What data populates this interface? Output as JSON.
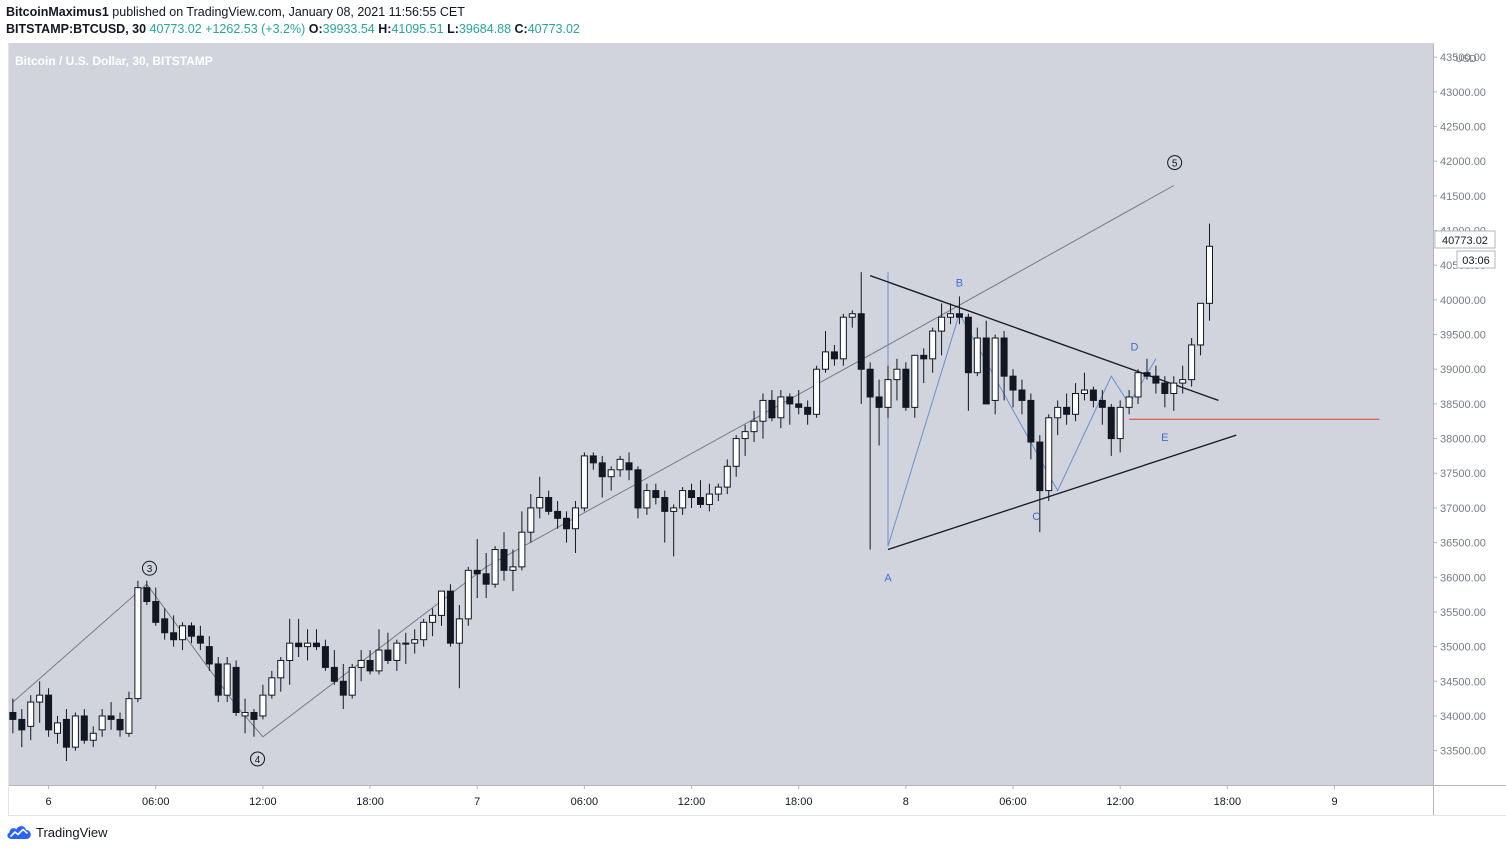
{
  "header": {
    "publisher": "BitcoinMaximus1",
    "published_text": "published on TradingView.com, January 08, 2021 11:56:55 CET"
  },
  "ohlc": {
    "symbol": "BITSTAMP:BTCUSD, 30",
    "last": "40773.02",
    "change": "+1262.53 (+3.2%)",
    "o_label": "O:",
    "o": "39933.54",
    "h_label": "H:",
    "h": "41095.51",
    "l_label": "L:",
    "l": "39684.88",
    "c_label": "C:",
    "c": "40773.02"
  },
  "chart_data": {
    "type": "candlestick",
    "title": "Bitcoin / U.S. Dollar, 30, BITSTAMP",
    "currency": "USD",
    "last_price_label": "40773.02",
    "countdown_label": "03:06",
    "y_ticks": [
      43500,
      43000,
      42500,
      42000,
      41500,
      41000,
      40500,
      40000,
      39500,
      39000,
      38500,
      38000,
      37500,
      37000,
      36500,
      36000,
      35500,
      35000,
      34500,
      34000,
      33500
    ],
    "ylim": [
      33000,
      43700
    ],
    "x_ticks": [
      "6",
      "06:00",
      "12:00",
      "18:00",
      "7",
      "06:00",
      "12:00",
      "18:00",
      "8",
      "06:00",
      "12:00",
      "18:00",
      "9"
    ],
    "x_tick_bars": [
      4,
      16,
      28,
      40,
      52,
      64,
      76,
      88,
      100,
      112,
      124,
      136,
      148
    ],
    "candles": [
      [
        34050,
        34250,
        33750,
        33950
      ],
      [
        33950,
        34100,
        33550,
        33800
      ],
      [
        33850,
        34300,
        33650,
        34200
      ],
      [
        34200,
        34500,
        33900,
        34300
      ],
      [
        34300,
        34400,
        33700,
        33800
      ],
      [
        33750,
        34000,
        33600,
        33900
      ],
      [
        33950,
        34100,
        33350,
        33550
      ],
      [
        33550,
        34050,
        33500,
        34000
      ],
      [
        34000,
        34100,
        33600,
        33650
      ],
      [
        33650,
        33850,
        33550,
        33750
      ],
      [
        33800,
        34100,
        33700,
        34000
      ],
      [
        34000,
        34200,
        33800,
        33950
      ],
      [
        33950,
        34050,
        33700,
        33800
      ],
      [
        33750,
        34350,
        33700,
        34250
      ],
      [
        34250,
        35950,
        34200,
        35850
      ],
      [
        35850,
        35950,
        35600,
        35650
      ],
      [
        35650,
        35850,
        35300,
        35350
      ],
      [
        35400,
        35550,
        35100,
        35200
      ],
      [
        35200,
        35450,
        35000,
        35100
      ],
      [
        35100,
        35350,
        34950,
        35300
      ],
      [
        35300,
        35350,
        35050,
        35150
      ],
      [
        35150,
        35300,
        34950,
        35050
      ],
      [
        35000,
        35150,
        34650,
        34750
      ],
      [
        34750,
        34850,
        34200,
        34300
      ],
      [
        34300,
        34850,
        34200,
        34750
      ],
      [
        34700,
        34800,
        34000,
        34050
      ],
      [
        34000,
        34250,
        33750,
        34050
      ],
      [
        34050,
        34100,
        33700,
        33950
      ],
      [
        34000,
        34450,
        33950,
        34300
      ],
      [
        34300,
        34650,
        34250,
        34550
      ],
      [
        34550,
        34850,
        34350,
        34800
      ],
      [
        34800,
        35400,
        34450,
        35050
      ],
      [
        35050,
        35400,
        34850,
        35000
      ],
      [
        35000,
        35250,
        34800,
        35050
      ],
      [
        35050,
        35250,
        34950,
        35000
      ],
      [
        35000,
        35100,
        34650,
        34700
      ],
      [
        34700,
        34950,
        34450,
        34500
      ],
      [
        34500,
        34750,
        34100,
        34300
      ],
      [
        34300,
        34750,
        34250,
        34700
      ],
      [
        34700,
        34950,
        34500,
        34800
      ],
      [
        34800,
        34950,
        34600,
        34650
      ],
      [
        34650,
        35250,
        34600,
        34950
      ],
      [
        34950,
        35200,
        34750,
        34800
      ],
      [
        34800,
        35100,
        34650,
        35050
      ],
      [
        35050,
        35200,
        34750,
        35050
      ],
      [
        35050,
        35250,
        34900,
        35100
      ],
      [
        35100,
        35400,
        35000,
        35350
      ],
      [
        35350,
        35550,
        35150,
        35450
      ],
      [
        35450,
        35800,
        35300,
        35800
      ],
      [
        35800,
        35900,
        35000,
        35050
      ],
      [
        35050,
        35600,
        34400,
        35400
      ],
      [
        35400,
        36150,
        35300,
        36100
      ],
      [
        36100,
        36550,
        35700,
        36050
      ],
      [
        36050,
        36350,
        35700,
        35900
      ],
      [
        35900,
        36450,
        35850,
        36400
      ],
      [
        36400,
        36650,
        35950,
        36100
      ],
      [
        36100,
        36400,
        35800,
        36150
      ],
      [
        36150,
        36950,
        36100,
        36650
      ],
      [
        36650,
        37200,
        36500,
        37000
      ],
      [
        37000,
        37450,
        36850,
        37150
      ],
      [
        37150,
        37250,
        36900,
        36950
      ],
      [
        36950,
        37100,
        36700,
        36850
      ],
      [
        36850,
        36950,
        36500,
        36700
      ],
      [
        36700,
        37100,
        36350,
        37000
      ],
      [
        37000,
        37800,
        36950,
        37750
      ],
      [
        37750,
        37800,
        37550,
        37650
      ],
      [
        37650,
        37750,
        37150,
        37450
      ],
      [
        37450,
        37600,
        37250,
        37550
      ],
      [
        37550,
        37750,
        37450,
        37700
      ],
      [
        37650,
        37800,
        37400,
        37550
      ],
      [
        37550,
        37600,
        36850,
        37000
      ],
      [
        37000,
        37350,
        36900,
        37250
      ],
      [
        37250,
        37350,
        37050,
        37150
      ],
      [
        37150,
        37250,
        36500,
        36950
      ],
      [
        36950,
        37050,
        36300,
        37000
      ],
      [
        37000,
        37300,
        36900,
        37250
      ],
      [
        37250,
        37350,
        37000,
        37150
      ],
      [
        37150,
        37400,
        37000,
        37050
      ],
      [
        37050,
        37350,
        36950,
        37200
      ],
      [
        37200,
        37350,
        37100,
        37300
      ],
      [
        37300,
        37700,
        37200,
        37600
      ],
      [
        37600,
        38050,
        37450,
        38000
      ],
      [
        38000,
        38200,
        37750,
        38100
      ],
      [
        38100,
        38400,
        37950,
        38250
      ],
      [
        38250,
        38650,
        38000,
        38550
      ],
      [
        38550,
        38700,
        38250,
        38300
      ],
      [
        38300,
        38700,
        38150,
        38600
      ],
      [
        38600,
        38650,
        38200,
        38500
      ],
      [
        38500,
        38700,
        38350,
        38450
      ],
      [
        38450,
        38550,
        38200,
        38350
      ],
      [
        38350,
        39050,
        38300,
        39000
      ],
      [
        39000,
        39550,
        38950,
        39250
      ],
      [
        39250,
        39350,
        39050,
        39150
      ],
      [
        39150,
        39800,
        39050,
        39750
      ],
      [
        39750,
        39850,
        39600,
        39800
      ],
      [
        39800,
        40400,
        38500,
        39000
      ],
      [
        39000,
        39100,
        36400,
        38600
      ],
      [
        38600,
        38850,
        37900,
        38450
      ],
      [
        38450,
        39050,
        38300,
        38850
      ],
      [
        38850,
        39150,
        38550,
        39000
      ],
      [
        39000,
        39100,
        38400,
        38450
      ],
      [
        38450,
        39200,
        38300,
        39200
      ],
      [
        39200,
        39300,
        38800,
        39150
      ],
      [
        39150,
        39600,
        38950,
        39550
      ],
      [
        39550,
        39950,
        39200,
        39750
      ],
      [
        39750,
        39950,
        39650,
        39800
      ],
      [
        39800,
        40050,
        39650,
        39750
      ],
      [
        39750,
        39800,
        38400,
        38950
      ],
      [
        38950,
        39600,
        38900,
        39450
      ],
      [
        39450,
        39700,
        38500,
        38500
      ],
      [
        38550,
        39500,
        38350,
        39450
      ],
      [
        39450,
        39550,
        38550,
        38900
      ],
      [
        38900,
        39000,
        38450,
        38700
      ],
      [
        38700,
        38850,
        38350,
        38550
      ],
      [
        38550,
        38650,
        37700,
        37950
      ],
      [
        37950,
        38050,
        36650,
        37250
      ],
      [
        37250,
        38350,
        37100,
        38300
      ],
      [
        38300,
        38550,
        38050,
        38450
      ],
      [
        38450,
        38650,
        38200,
        38350
      ],
      [
        38350,
        38800,
        38250,
        38650
      ],
      [
        38650,
        38950,
        38550,
        38700
      ],
      [
        38700,
        38750,
        38450,
        38550
      ],
      [
        38550,
        38700,
        38200,
        38450
      ],
      [
        38450,
        38500,
        37750,
        38000
      ],
      [
        38000,
        38550,
        37800,
        38450
      ],
      [
        38450,
        38700,
        38350,
        38600
      ],
      [
        38600,
        39000,
        38500,
        38950
      ],
      [
        38950,
        39150,
        38850,
        38900
      ],
      [
        38900,
        39050,
        38650,
        38800
      ],
      [
        38800,
        38900,
        38450,
        38650
      ],
      [
        38650,
        38900,
        38400,
        38800
      ],
      [
        38800,
        39050,
        38650,
        38850
      ],
      [
        38850,
        39450,
        38750,
        39350
      ],
      [
        39350,
        39950,
        39200,
        39950
      ],
      [
        39950,
        41100,
        39700,
        40773
      ]
    ],
    "lines": [
      {
        "name": "impulse-path",
        "color": "#787b86",
        "points": [
          [
            0,
            34200
          ],
          [
            15,
            35900
          ],
          [
            25,
            34150
          ],
          [
            28,
            33700
          ],
          [
            53,
            36150
          ],
          [
            98,
            39350
          ],
          [
            130,
            41650
          ]
        ]
      },
      {
        "name": "triangle-path",
        "color": "#6a8fd1",
        "points": [
          [
            98,
            40400
          ],
          [
            98,
            36450
          ],
          [
            106,
            39800
          ],
          [
            117,
            37250
          ],
          [
            123,
            38900
          ],
          [
            125,
            38500
          ],
          [
            128,
            39150
          ]
        ]
      },
      {
        "name": "triangle-upper",
        "color": "#131722",
        "points": [
          [
            96,
            40350
          ],
          [
            135,
            38550
          ]
        ]
      },
      {
        "name": "triangle-lower",
        "color": "#131722",
        "points": [
          [
            98,
            36400
          ],
          [
            137,
            38050
          ]
        ]
      },
      {
        "name": "support-line",
        "color": "#e53935",
        "points": [
          [
            125,
            38280
          ],
          [
            153,
            38280
          ]
        ]
      }
    ],
    "annotations": [
      {
        "text": "3",
        "type": "circle",
        "bar": 15.3,
        "price": 36130
      },
      {
        "text": "4",
        "type": "circle",
        "bar": 27.4,
        "price": 33380
      },
      {
        "text": "5",
        "type": "circle",
        "bar": 130.1,
        "price": 41980
      },
      {
        "text": "A",
        "type": "wave",
        "bar": 98,
        "price": 36000
      },
      {
        "text": "B",
        "type": "wave",
        "bar": 106,
        "price": 40250
      },
      {
        "text": "C",
        "type": "wave",
        "bar": 114.6,
        "price": 36880
      },
      {
        "text": "D",
        "type": "wave",
        "bar": 125.6,
        "price": 39330
      },
      {
        "text": "E",
        "type": "wave",
        "bar": 129,
        "price": 38020
      }
    ],
    "colors": {
      "background": "#d1d4dc",
      "up_fill": "#ffffff",
      "down_fill": "#131722",
      "wick": "#131722",
      "axis_bg": "#ffffff"
    }
  },
  "footer": {
    "brand": "TradingView",
    "logo_icon": "tradingview-cloud-icon"
  }
}
